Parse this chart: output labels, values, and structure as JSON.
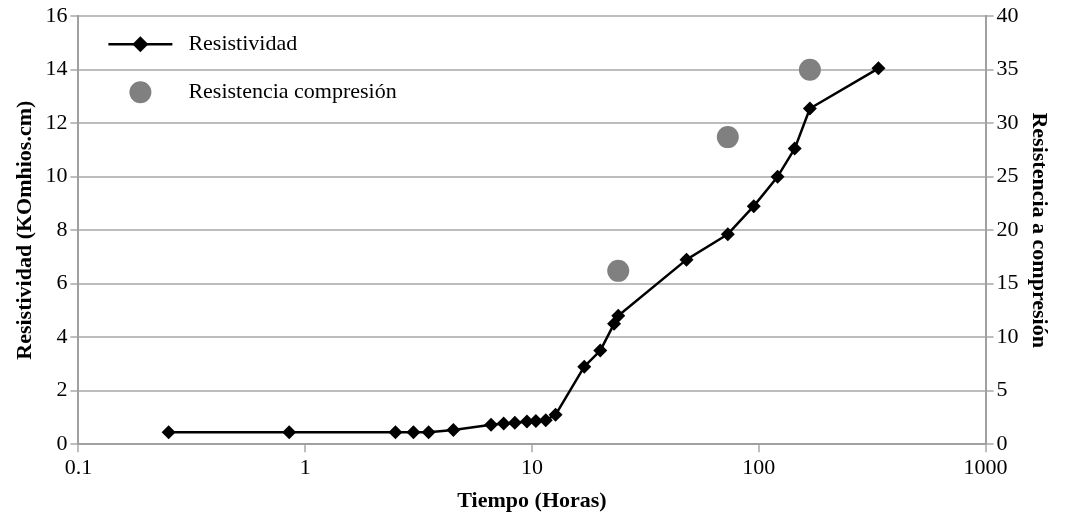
{
  "chart_data": {
    "type": "line",
    "xlabel": "Tiempo (Horas)",
    "ylabel": "Resistividad (KOmhios.cm)",
    "y2label": "Resistencia a compresión",
    "log": "x",
    "xlim": [
      0.1,
      1000
    ],
    "xticks": [
      0.1,
      1,
      10,
      100,
      1000
    ],
    "ylim": [
      0,
      16
    ],
    "yticks": [
      0,
      2,
      4,
      6,
      8,
      10,
      12,
      14,
      16
    ],
    "y2lim": [
      0,
      40
    ],
    "y2ticks": [
      0,
      5,
      10,
      15,
      20,
      25,
      30,
      35,
      40
    ],
    "grid": "y",
    "legend": "top left",
    "series": [
      {
        "name": "Resistividad",
        "color": "#000000",
        "marker": "diamond",
        "line_style": "solid",
        "x": [
          0.25,
          0.85,
          2.5,
          3,
          3.5,
          4.5,
          6.6,
          7.5,
          8.4,
          9.5,
          10.4,
          11.5,
          12.7,
          17,
          20,
          23,
          24,
          48,
          73,
          95,
          121,
          144,
          168,
          337
        ],
        "values": [
          0.45,
          0.45,
          0.45,
          0.45,
          0.45,
          0.53,
          0.73,
          0.77,
          0.8,
          0.85,
          0.87,
          0.9,
          1.1,
          2.9,
          3.5,
          4.5,
          4.8,
          6.9,
          7.85,
          8.9,
          10,
          11.05,
          12.55,
          14.05
        ]
      },
      {
        "name": "Resistencia compresión",
        "type": "scatter",
        "axis": "y2",
        "color": "#808080",
        "marker": "circle",
        "x": [
          24,
          73,
          168
        ],
        "values": [
          16.2,
          28.7,
          35
        ]
      }
    ]
  }
}
